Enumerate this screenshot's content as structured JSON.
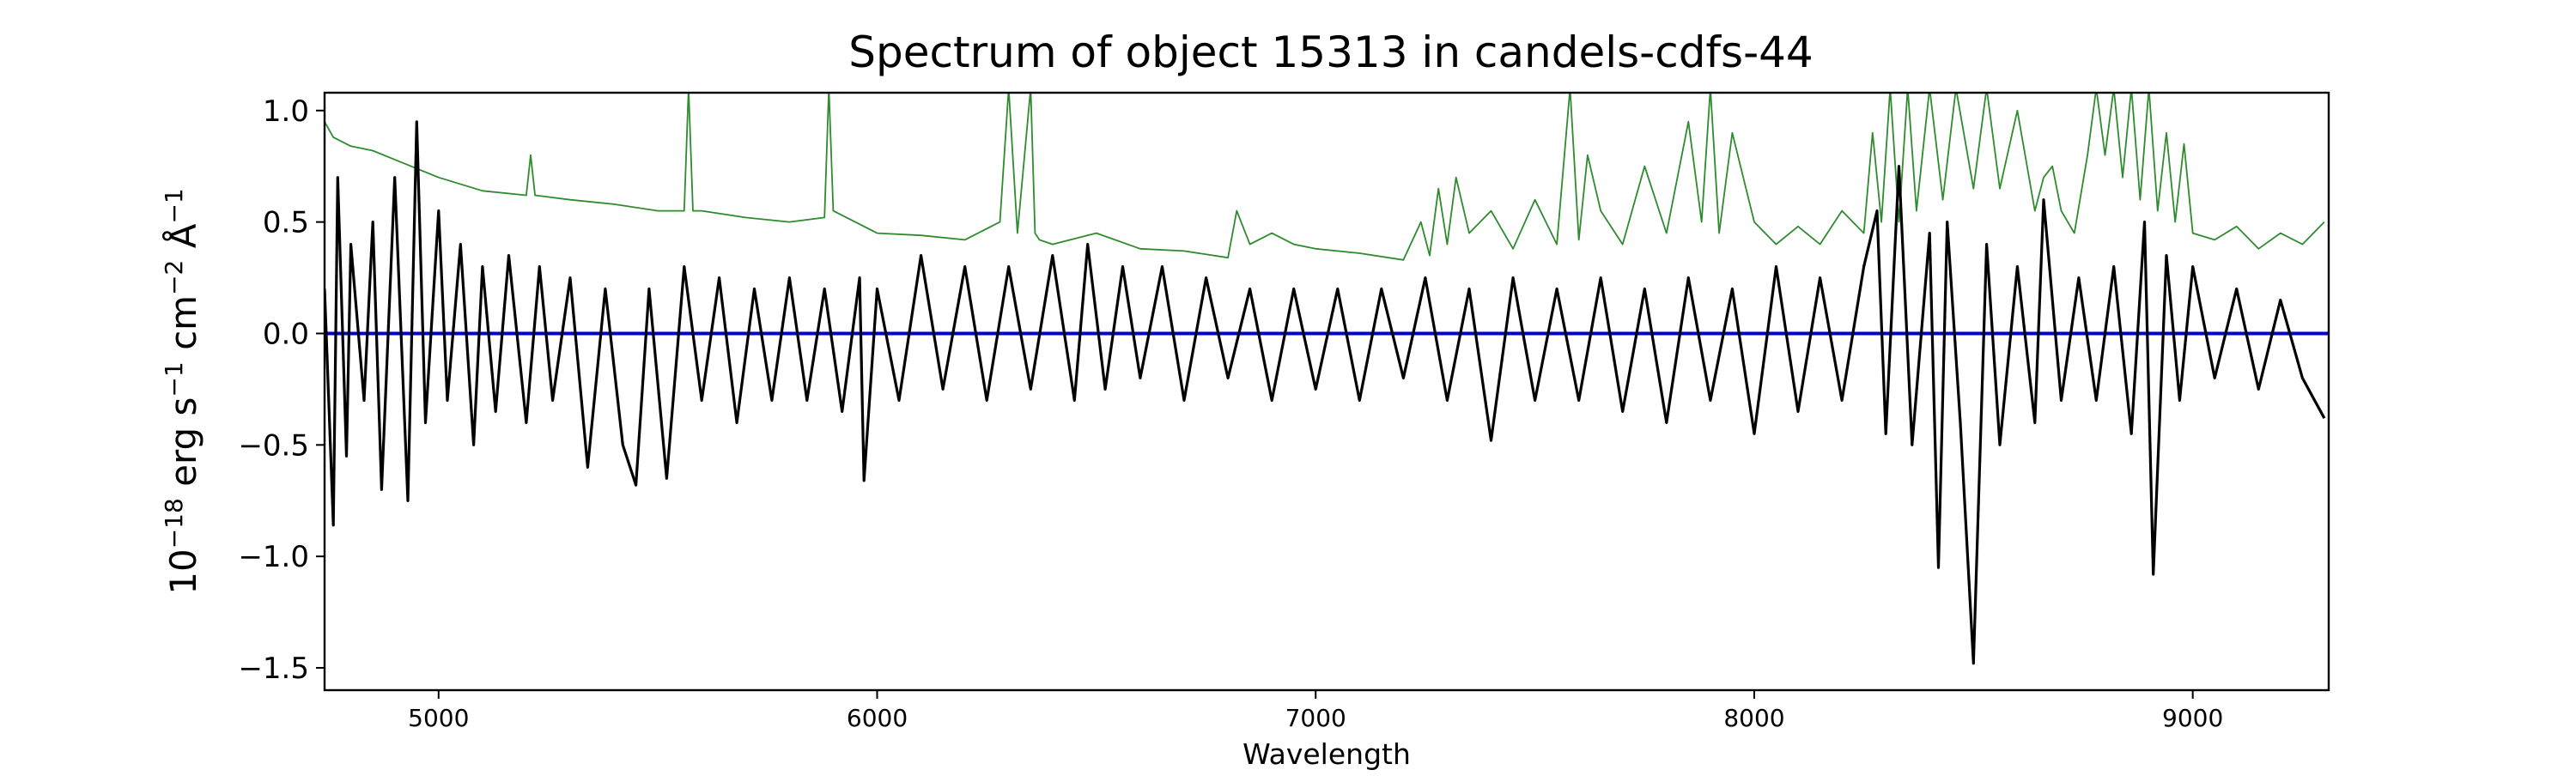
{
  "chart_data": {
    "type": "line",
    "title": "Spectrum of object 15313 in candels-cdfs-44",
    "xlabel": "Wavelength",
    "ylabel_parts": {
      "prefix": "10",
      "exp1": "−18",
      "mid": " erg s",
      "exp2": "−1",
      "mid2": " cm",
      "exp3": "−2",
      "mid3": " Å",
      "exp4": "−1"
    },
    "xlim": [
      4740,
      9310
    ],
    "ylim": [
      -1.6,
      1.08
    ],
    "xticks": [
      5000,
      6000,
      7000,
      8000,
      9000
    ],
    "xtick_labels": [
      "5000",
      "6000",
      "7000",
      "8000",
      "9000"
    ],
    "yticks": [
      -1.5,
      -1.0,
      -0.5,
      0.0,
      0.5,
      1.0
    ],
    "ytick_labels": [
      "−1.5",
      "−1.0",
      "−0.5",
      "0.0",
      "0.5",
      "1.0"
    ],
    "grid": false,
    "legend": "none",
    "colors": {
      "flux": "#000000",
      "error": "#2e8b2e",
      "zero": "#0000cc"
    },
    "series": [
      {
        "role": "flux",
        "x": [
          4740,
          4760,
          4770,
          4790,
          4800,
          4830,
          4850,
          4870,
          4900,
          4930,
          4950,
          4970,
          5000,
          5020,
          5050,
          5080,
          5100,
          5130,
          5160,
          5200,
          5230,
          5260,
          5300,
          5340,
          5380,
          5420,
          5450,
          5480,
          5520,
          5560,
          5600,
          5640,
          5680,
          5720,
          5760,
          5800,
          5840,
          5880,
          5920,
          5960,
          5970,
          6000,
          6050,
          6100,
          6150,
          6200,
          6250,
          6300,
          6350,
          6400,
          6450,
          6480,
          6520,
          6560,
          6600,
          6650,
          6700,
          6750,
          6800,
          6850,
          6900,
          6950,
          7000,
          7050,
          7100,
          7150,
          7200,
          7250,
          7300,
          7350,
          7400,
          7450,
          7500,
          7550,
          7600,
          7650,
          7700,
          7750,
          7800,
          7850,
          7900,
          7950,
          8000,
          8050,
          8100,
          8150,
          8200,
          8250,
          8280,
          8300,
          8330,
          8360,
          8400,
          8420,
          8440,
          8470,
          8500,
          8530,
          8560,
          8600,
          8640,
          8660,
          8700,
          8740,
          8780,
          8820,
          8860,
          8890,
          8910,
          8940,
          8970,
          9000,
          9050,
          9100,
          9150,
          9200,
          9250,
          9300
        ],
        "y": [
          0.2,
          -0.86,
          0.7,
          -0.55,
          0.4,
          -0.3,
          0.5,
          -0.7,
          0.7,
          -0.75,
          0.95,
          -0.4,
          0.55,
          -0.3,
          0.4,
          -0.5,
          0.3,
          -0.35,
          0.35,
          -0.4,
          0.3,
          -0.3,
          0.25,
          -0.6,
          0.2,
          -0.5,
          -0.68,
          0.2,
          -0.65,
          0.3,
          -0.3,
          0.25,
          -0.4,
          0.2,
          -0.3,
          0.25,
          -0.3,
          0.2,
          -0.35,
          0.25,
          -0.66,
          0.2,
          -0.3,
          0.35,
          -0.25,
          0.3,
          -0.3,
          0.3,
          -0.25,
          0.35,
          -0.3,
          0.4,
          -0.25,
          0.3,
          -0.2,
          0.3,
          -0.3,
          0.25,
          -0.2,
          0.2,
          -0.3,
          0.2,
          -0.25,
          0.2,
          -0.3,
          0.2,
          -0.2,
          0.25,
          -0.3,
          0.2,
          -0.48,
          0.25,
          -0.3,
          0.2,
          -0.3,
          0.25,
          -0.35,
          0.2,
          -0.4,
          0.25,
          -0.3,
          0.2,
          -0.45,
          0.3,
          -0.35,
          0.25,
          -0.3,
          0.3,
          0.55,
          -0.45,
          0.75,
          -0.5,
          0.45,
          -1.05,
          0.5,
          -0.4,
          -1.48,
          0.4,
          -0.5,
          0.3,
          -0.4,
          0.6,
          -0.3,
          0.25,
          -0.3,
          0.3,
          -0.45,
          0.5,
          -1.08,
          0.35,
          -0.3,
          0.3,
          -0.2,
          0.2,
          -0.25,
          0.15,
          -0.2,
          -0.38
        ]
      },
      {
        "role": "error",
        "x": [
          4740,
          4760,
          4800,
          4850,
          4900,
          4950,
          5000,
          5100,
          5200,
          5210,
          5220,
          5300,
          5400,
          5500,
          5560,
          5570,
          5580,
          5600,
          5700,
          5800,
          5880,
          5890,
          5900,
          5950,
          6000,
          6100,
          6200,
          6280,
          6300,
          6320,
          6350,
          6360,
          6370,
          6400,
          6500,
          6600,
          6700,
          6800,
          6820,
          6850,
          6900,
          6950,
          7000,
          7100,
          7200,
          7240,
          7260,
          7280,
          7300,
          7320,
          7350,
          7400,
          7450,
          7500,
          7550,
          7580,
          7600,
          7620,
          7650,
          7700,
          7750,
          7800,
          7850,
          7880,
          7900,
          7920,
          7950,
          8000,
          8050,
          8100,
          8150,
          8200,
          8250,
          8270,
          8290,
          8310,
          8330,
          8350,
          8370,
          8400,
          8430,
          8460,
          8500,
          8530,
          8560,
          8600,
          8640,
          8660,
          8680,
          8700,
          8730,
          8760,
          8780,
          8800,
          8820,
          8840,
          8860,
          8880,
          8900,
          8920,
          8940,
          8960,
          8980,
          9000,
          9050,
          9100,
          9150,
          9200,
          9250,
          9300
        ],
        "y": [
          0.95,
          0.88,
          0.84,
          0.82,
          0.78,
          0.74,
          0.7,
          0.64,
          0.62,
          0.8,
          0.62,
          0.6,
          0.58,
          0.55,
          0.55,
          1.1,
          0.55,
          0.55,
          0.52,
          0.5,
          0.52,
          1.1,
          0.55,
          0.5,
          0.45,
          0.44,
          0.42,
          0.5,
          1.1,
          0.45,
          1.1,
          0.45,
          0.42,
          0.4,
          0.45,
          0.38,
          0.37,
          0.34,
          0.55,
          0.4,
          0.45,
          0.4,
          0.38,
          0.36,
          0.33,
          0.5,
          0.35,
          0.65,
          0.4,
          0.7,
          0.45,
          0.55,
          0.38,
          0.6,
          0.4,
          1.1,
          0.42,
          0.8,
          0.55,
          0.4,
          0.75,
          0.45,
          0.95,
          0.5,
          1.1,
          0.45,
          0.9,
          0.5,
          0.4,
          0.48,
          0.4,
          0.55,
          0.45,
          0.9,
          0.5,
          1.1,
          0.5,
          1.1,
          0.55,
          1.1,
          0.6,
          1.1,
          0.65,
          1.1,
          0.65,
          1.0,
          0.55,
          0.7,
          0.75,
          0.55,
          0.45,
          0.8,
          1.1,
          0.8,
          1.1,
          0.7,
          1.1,
          0.6,
          1.1,
          0.55,
          0.9,
          0.5,
          0.85,
          0.45,
          0.42,
          0.48,
          0.38,
          0.45,
          0.4,
          0.5
        ]
      },
      {
        "role": "zero",
        "x": [
          4740,
          9310
        ],
        "y": [
          0.0,
          0.0
        ]
      }
    ]
  }
}
